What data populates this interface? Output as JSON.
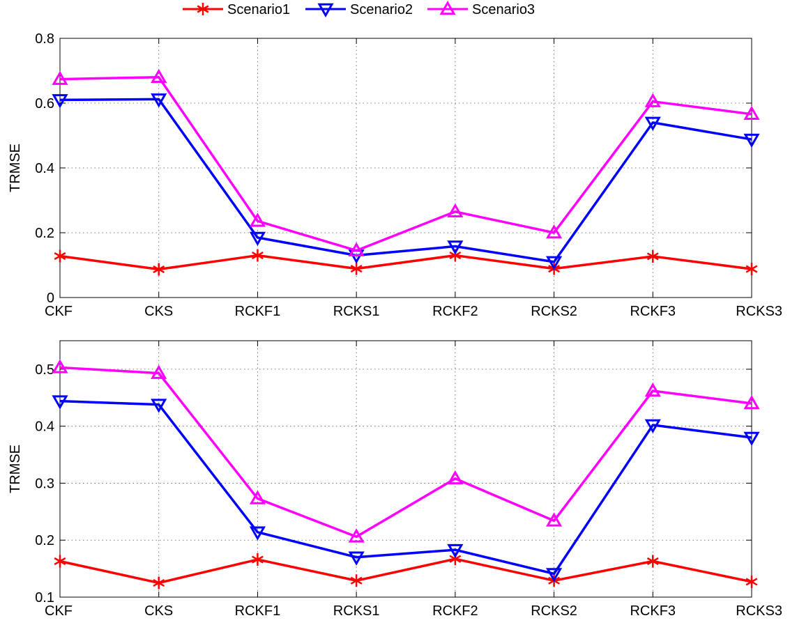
{
  "legend": {
    "position": "top-center",
    "entries": [
      {
        "name": "Scenario1",
        "color": "#ff0000",
        "marker": "asterisk"
      },
      {
        "name": "Scenario2",
        "color": "#0000ff",
        "marker": "triangle-down"
      },
      {
        "name": "Scenario3",
        "color": "#ff00ff",
        "marker": "triangle-up"
      }
    ]
  },
  "chart_data": [
    {
      "type": "line",
      "categories": [
        "CKF",
        "CKS",
        "RCKF1",
        "RCKS1",
        "RCKF2",
        "RCKS2",
        "RCKF3",
        "RCKS3"
      ],
      "ylabel": "TRMSE",
      "ylim": [
        0,
        0.8
      ],
      "yticks": [
        "0",
        "0.2",
        "0.4",
        "0.6",
        "0.8"
      ],
      "grid": true,
      "series": [
        {
          "name": "Scenario1",
          "values": [
            0.128,
            0.087,
            0.13,
            0.089,
            0.13,
            0.089,
            0.127,
            0.088
          ]
        },
        {
          "name": "Scenario2",
          "values": [
            0.61,
            0.612,
            0.185,
            0.13,
            0.158,
            0.11,
            0.54,
            0.488
          ]
        },
        {
          "name": "Scenario3",
          "values": [
            0.674,
            0.68,
            0.236,
            0.145,
            0.265,
            0.2,
            0.605,
            0.566
          ]
        }
      ]
    },
    {
      "type": "line",
      "categories": [
        "CKF",
        "CKS",
        "RCKF1",
        "RCKS1",
        "RCKF2",
        "RCKS2",
        "RCKF3",
        "RCKS3"
      ],
      "ylabel": "TRMSE",
      "ylim": [
        0.1,
        0.55
      ],
      "yticks": [
        "0.1",
        "0.2",
        "0.3",
        "0.4",
        "0.5"
      ],
      "grid": true,
      "series": [
        {
          "name": "Scenario1",
          "values": [
            0.163,
            0.125,
            0.166,
            0.129,
            0.167,
            0.129,
            0.163,
            0.127
          ]
        },
        {
          "name": "Scenario2",
          "values": [
            0.444,
            0.438,
            0.214,
            0.17,
            0.183,
            0.141,
            0.402,
            0.38
          ]
        },
        {
          "name": "Scenario3",
          "values": [
            0.503,
            0.493,
            0.273,
            0.206,
            0.308,
            0.234,
            0.462,
            0.44
          ]
        }
      ]
    }
  ]
}
